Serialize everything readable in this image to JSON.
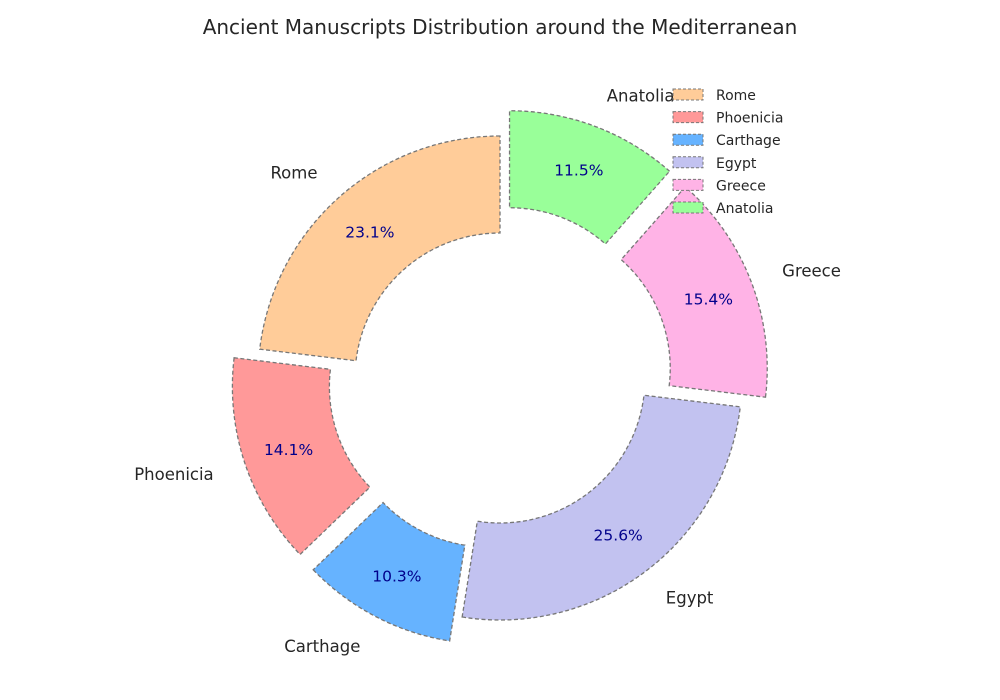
{
  "chart_data": {
    "type": "pie",
    "title": "Ancient Manuscripts Distribution around the Mediterranean",
    "categories": [
      "Rome",
      "Phoenicia",
      "Carthage",
      "Egypt",
      "Greece",
      "Anatolia"
    ],
    "values": [
      23.1,
      14.1,
      10.3,
      25.6,
      15.4,
      11.5
    ],
    "value_labels": [
      "23.1%",
      "14.1%",
      "10.3%",
      "25.6%",
      "15.4%",
      "11.5%"
    ],
    "colors": [
      "#ffcc99",
      "#ff9999",
      "#66b3ff",
      "#c2c2f0",
      "#ffb3e6",
      "#99ff99"
    ],
    "exploded": [
      false,
      true,
      true,
      false,
      true,
      true
    ],
    "donut": true,
    "start_angle_deg": 90,
    "direction": "counterclockwise",
    "legend": {
      "position": "top-right",
      "entries": [
        "Rome",
        "Phoenicia",
        "Carthage",
        "Egypt",
        "Greece",
        "Anatolia"
      ]
    }
  }
}
